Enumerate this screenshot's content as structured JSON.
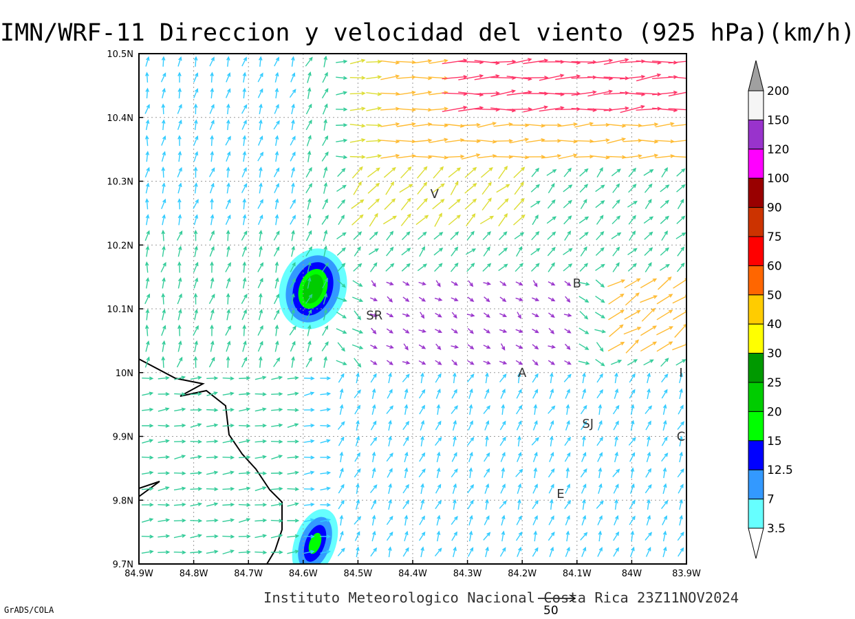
{
  "title": "IMN/WRF-11 Direccion y velocidad del viento (925 hPa)(km/h)",
  "footer": "Instituto Meteorologico Nacional Costa Rica 23Z11NOV2024",
  "software_credit": "GrADS/COLA",
  "reference_vector": {
    "value": "50"
  },
  "axes": {
    "x_ticks": [
      "84.9W",
      "84.8W",
      "84.7W",
      "84.6W",
      "84.5W",
      "84.4W",
      "84.3W",
      "84.2W",
      "84.1W",
      "84W",
      "83.9W"
    ],
    "y_ticks": [
      "10.5N",
      "10.4N",
      "10.3N",
      "10.2N",
      "10.1N",
      "10N",
      "9.9N",
      "9.8N",
      "9.7N"
    ],
    "lon_range": [
      -84.9,
      -83.9
    ],
    "lat_range": [
      9.7,
      10.5
    ],
    "grid": true
  },
  "cities": [
    {
      "label": "V",
      "lon": -84.36,
      "lat": 10.28
    },
    {
      "label": "SR",
      "lon": -84.47,
      "lat": 10.09
    },
    {
      "label": "B",
      "lon": -84.1,
      "lat": 10.14
    },
    {
      "label": "A",
      "lon": -84.2,
      "lat": 10.0
    },
    {
      "label": "SJ",
      "lon": -84.08,
      "lat": 9.92
    },
    {
      "label": "C",
      "lon": -83.91,
      "lat": 9.9
    },
    {
      "label": "E",
      "lon": -84.13,
      "lat": 9.81
    },
    {
      "label": "I",
      "lon": -83.91,
      "lat": 10.0
    }
  ],
  "colorbar": {
    "levels": [
      "200",
      "150",
      "120",
      "100",
      "90",
      "75",
      "60",
      "50",
      "40",
      "30",
      "25",
      "20",
      "15",
      "12.5",
      "7",
      "3.5"
    ],
    "colors": [
      "#f5f5f5",
      "#9933cc",
      "#ff00ff",
      "#990000",
      "#cc3300",
      "#ff0000",
      "#ff6600",
      "#ffcc00",
      "#ffff00",
      "#009900",
      "#00cc00",
      "#00ff00",
      "#0000ff",
      "#3399ff",
      "#66ffff"
    ],
    "over_color": "#a0a0a0",
    "under_color": "#ffffff"
  }
}
